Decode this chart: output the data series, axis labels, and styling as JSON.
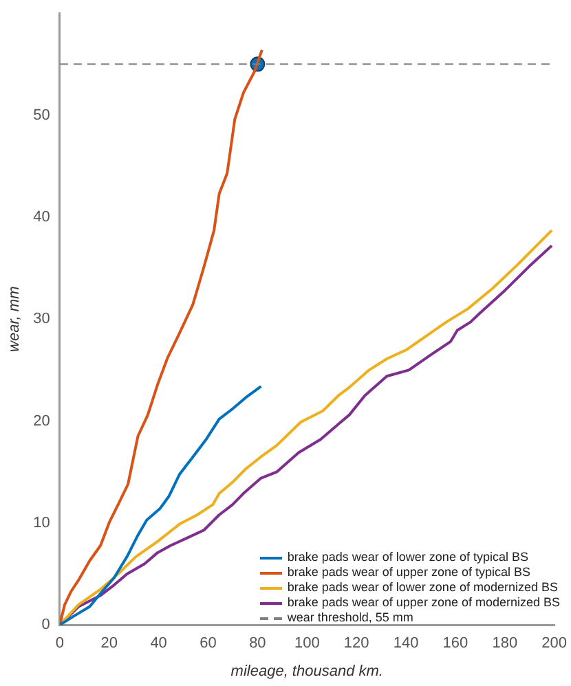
{
  "chart_data": {
    "type": "line",
    "xlabel": "mileage, thousand km.",
    "ylabel": "wear, mm",
    "xlim": [
      0,
      200
    ],
    "xticks": [
      0,
      20,
      40,
      60,
      80,
      100,
      120,
      140,
      160,
      180,
      200
    ],
    "ylim": [
      0,
      60
    ],
    "yticks": [
      0,
      10,
      20,
      30,
      40,
      50
    ],
    "grid": false,
    "legend": "bottom right",
    "marker": "none",
    "line_style": "solid",
    "series": [
      {
        "name": "brake pads wear of lower zone of typical BS",
        "color": "#0072bd",
        "x": [
          0,
          5.9,
          12.1,
          16.5,
          21.9,
          27.2,
          31.6,
          35.2,
          40.5,
          44.1,
          48.5,
          53.9,
          59.2,
          64.5,
          69.9,
          75.2,
          81.4
        ],
        "values": [
          0,
          0.9,
          1.8,
          3.1,
          4.6,
          6.7,
          8.8,
          10.3,
          11.4,
          12.6,
          14.8,
          16.5,
          18.2,
          20.2,
          21.2,
          22.3,
          23.4
        ]
      },
      {
        "name": "brake pads wear of upper zone of typical BS",
        "color": "#d95319",
        "x": [
          0,
          2.0,
          4.6,
          7.6,
          12.1,
          16.5,
          20.1,
          23.6,
          27.6,
          31.6,
          35.6,
          39.6,
          43.6,
          48.2,
          53.8,
          58.3,
          62.4,
          64.5,
          67.7,
          70.8,
          74.3,
          78.8,
          81.8
        ],
        "values": [
          0,
          2.0,
          3.3,
          4.4,
          6.3,
          7.8,
          10.1,
          11.8,
          13.8,
          18.5,
          20.6,
          23.6,
          26.2,
          28.5,
          31.4,
          35.1,
          38.7,
          42.3,
          44.3,
          49.6,
          52.2,
          54.3,
          56.4
        ]
      },
      {
        "name": "brake pads wear of lower zone of modernized BS",
        "color": "#edb120",
        "x": [
          0,
          7.6,
          16.5,
          23.6,
          30.8,
          39.6,
          48.5,
          55.6,
          61.9,
          64.5,
          69.9,
          75.2,
          81.4,
          87.7,
          97.5,
          106.4,
          112.7,
          117.1,
          125.1,
          132.3,
          140.3,
          149.2,
          156.3,
          165,
          175,
          185,
          192,
          199
        ],
        "values": [
          0,
          2.0,
          3.5,
          5.0,
          6.7,
          8.2,
          9.9,
          10.8,
          11.8,
          12.9,
          14.0,
          15.3,
          16.5,
          17.6,
          19.9,
          21.0,
          22.5,
          23.3,
          25.0,
          26.1,
          27.0,
          28.5,
          29.7,
          31.0,
          33.0,
          35.3,
          37.0,
          38.7
        ]
      },
      {
        "name": "brake pads wear of upper zone of modernized BS",
        "color": "#7e2f8e",
        "x": [
          0,
          7.6,
          16.5,
          21.9,
          27.2,
          34.3,
          39.6,
          44.9,
          52.1,
          58.3,
          64.5,
          69.9,
          74.3,
          81.4,
          87.7,
          96.6,
          105.5,
          112.7,
          117.1,
          123.4,
          132.3,
          141.2,
          150.1,
          158.1,
          160.8,
          166.1,
          170,
          180,
          190,
          199
        ],
        "values": [
          0,
          1.8,
          2.9,
          3.9,
          5.0,
          6.0,
          7.1,
          7.8,
          8.6,
          9.3,
          10.8,
          11.8,
          12.9,
          14.4,
          15.0,
          16.9,
          18.2,
          19.7,
          20.6,
          22.5,
          24.4,
          25.0,
          26.5,
          27.8,
          28.9,
          29.7,
          30.6,
          32.8,
          35.2,
          37.2
        ]
      },
      {
        "type": "scatter",
        "color": "#0072bd",
        "marker": "circle",
        "x": [
          80
        ],
        "values": [
          55
        ]
      }
    ],
    "ref_lines": [
      {
        "axis": "y",
        "value": 55,
        "label": "wear threshold, 55 mm",
        "color": "#808080",
        "line_style": "dashed"
      }
    ]
  }
}
